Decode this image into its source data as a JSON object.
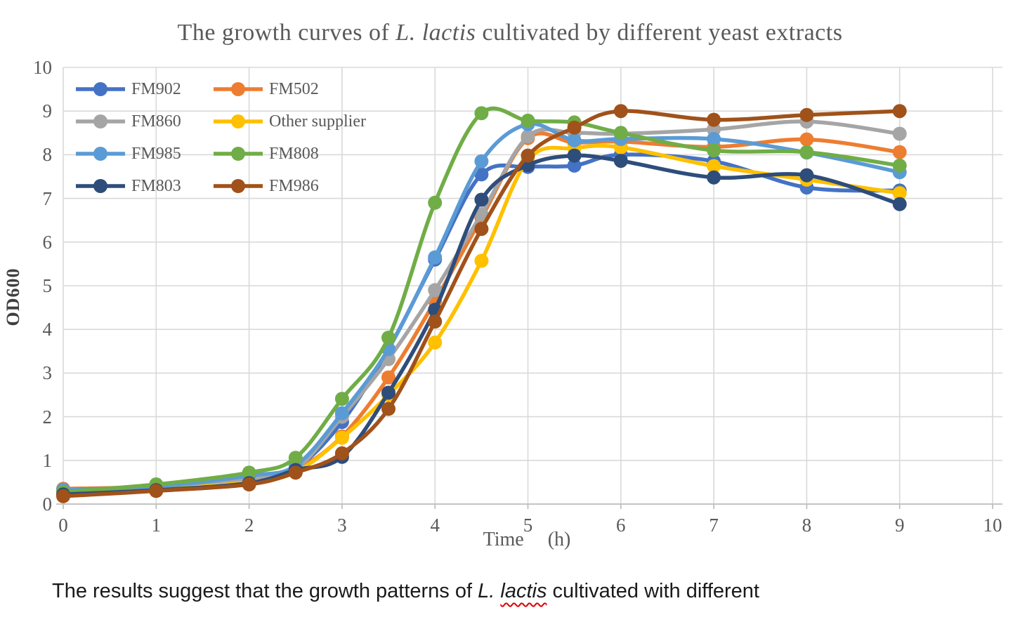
{
  "title": {
    "segments": [
      {
        "text": "The growth curves of ",
        "italic": false
      },
      {
        "text": "L. lactis",
        "italic": true
      },
      {
        "text": " cultivated by different yeast extracts",
        "italic": false
      }
    ],
    "full": "The growth curves of L. lactis cultivated by different yeast extracts"
  },
  "axes": {
    "y_label": "OD600",
    "x_label_time": "Time",
    "x_label_unit": "(h)",
    "x_label": "Time (h)",
    "x_ticks": [
      "0",
      "1",
      "2",
      "3",
      "4",
      "5",
      "6",
      "7",
      "8",
      "9",
      "10"
    ],
    "y_ticks": [
      "0",
      "1",
      "2",
      "3",
      "4",
      "5",
      "6",
      "7",
      "8",
      "9",
      "10"
    ]
  },
  "colors": {
    "grid": "#d9d9d9",
    "axis": "#bfbfbf",
    "title_text": "#595959",
    "tick_text": "#595959",
    "caption_text": "#1a1a1a",
    "squiggle_red": "#e00000"
  },
  "legend": {
    "position": "top-left inside plot, 2 columns",
    "entries": [
      "FM902",
      "FM502",
      "FM860",
      "Other supplier",
      "FM985",
      "FM808",
      "FM803",
      "FM986"
    ]
  },
  "chart_data": {
    "type": "line",
    "title": "The growth curves of L. lactis cultivated by different yeast extracts",
    "xlabel": "Time (h)",
    "ylabel": "OD600",
    "xlim": [
      0,
      10
    ],
    "ylim": [
      0,
      10
    ],
    "grid": true,
    "marker": "circle",
    "smooth": true,
    "x": [
      0,
      1,
      2,
      2.5,
      3,
      3.5,
      4,
      4.5,
      5,
      5.5,
      6,
      7,
      8,
      9
    ],
    "series": [
      {
        "name": "FM902",
        "color": "#4472C4",
        "values": [
          0.3,
          0.38,
          0.6,
          0.82,
          1.88,
          3.55,
          5.6,
          7.55,
          7.72,
          7.75,
          8.0,
          7.85,
          7.25,
          7.18
        ]
      },
      {
        "name": "FM502",
        "color": "#ED7D31",
        "values": [
          0.35,
          0.4,
          0.55,
          0.78,
          1.55,
          2.9,
          4.65,
          6.55,
          8.38,
          8.28,
          8.3,
          8.18,
          8.35,
          8.06
        ]
      },
      {
        "name": "FM860",
        "color": "#A5A5A5",
        "values": [
          0.3,
          0.36,
          0.58,
          0.8,
          2.0,
          3.32,
          4.9,
          6.64,
          8.42,
          8.5,
          8.48,
          8.58,
          8.76,
          8.48
        ]
      },
      {
        "name": "Other supplier",
        "color": "#FFC000",
        "values": [
          0.25,
          0.33,
          0.5,
          0.73,
          1.52,
          2.5,
          3.7,
          5.57,
          7.88,
          8.15,
          8.17,
          7.74,
          7.43,
          7.12
        ]
      },
      {
        "name": "FM985",
        "color": "#5B9BD5",
        "values": [
          0.33,
          0.4,
          0.65,
          0.88,
          2.08,
          3.55,
          5.65,
          7.85,
          8.7,
          8.33,
          8.36,
          8.36,
          8.05,
          7.6
        ]
      },
      {
        "name": "FM808",
        "color": "#70AD47",
        "values": [
          0.28,
          0.45,
          0.72,
          1.06,
          2.41,
          3.81,
          6.9,
          8.95,
          8.78,
          8.74,
          8.5,
          8.1,
          8.06,
          7.75
        ]
      },
      {
        "name": "FM803",
        "color": "#2E4D7B",
        "values": [
          0.22,
          0.32,
          0.48,
          0.78,
          1.08,
          2.55,
          4.45,
          6.97,
          7.76,
          7.98,
          7.86,
          7.48,
          7.53,
          6.87
        ]
      },
      {
        "name": "FM986",
        "color": "#A0521A",
        "values": [
          0.18,
          0.3,
          0.45,
          0.72,
          1.16,
          2.18,
          4.18,
          6.3,
          7.98,
          8.62,
          9.0,
          8.8,
          8.91,
          9.0
        ]
      }
    ]
  },
  "caption": {
    "segments": [
      {
        "text": "The results suggest that the growth patterns of ",
        "italic": false,
        "squiggle": false
      },
      {
        "text": "L. ",
        "italic": true,
        "squiggle": false
      },
      {
        "text": "lactis",
        "italic": true,
        "squiggle": true
      },
      {
        "text": " cultivated with different",
        "italic": false,
        "squiggle": false
      }
    ]
  }
}
